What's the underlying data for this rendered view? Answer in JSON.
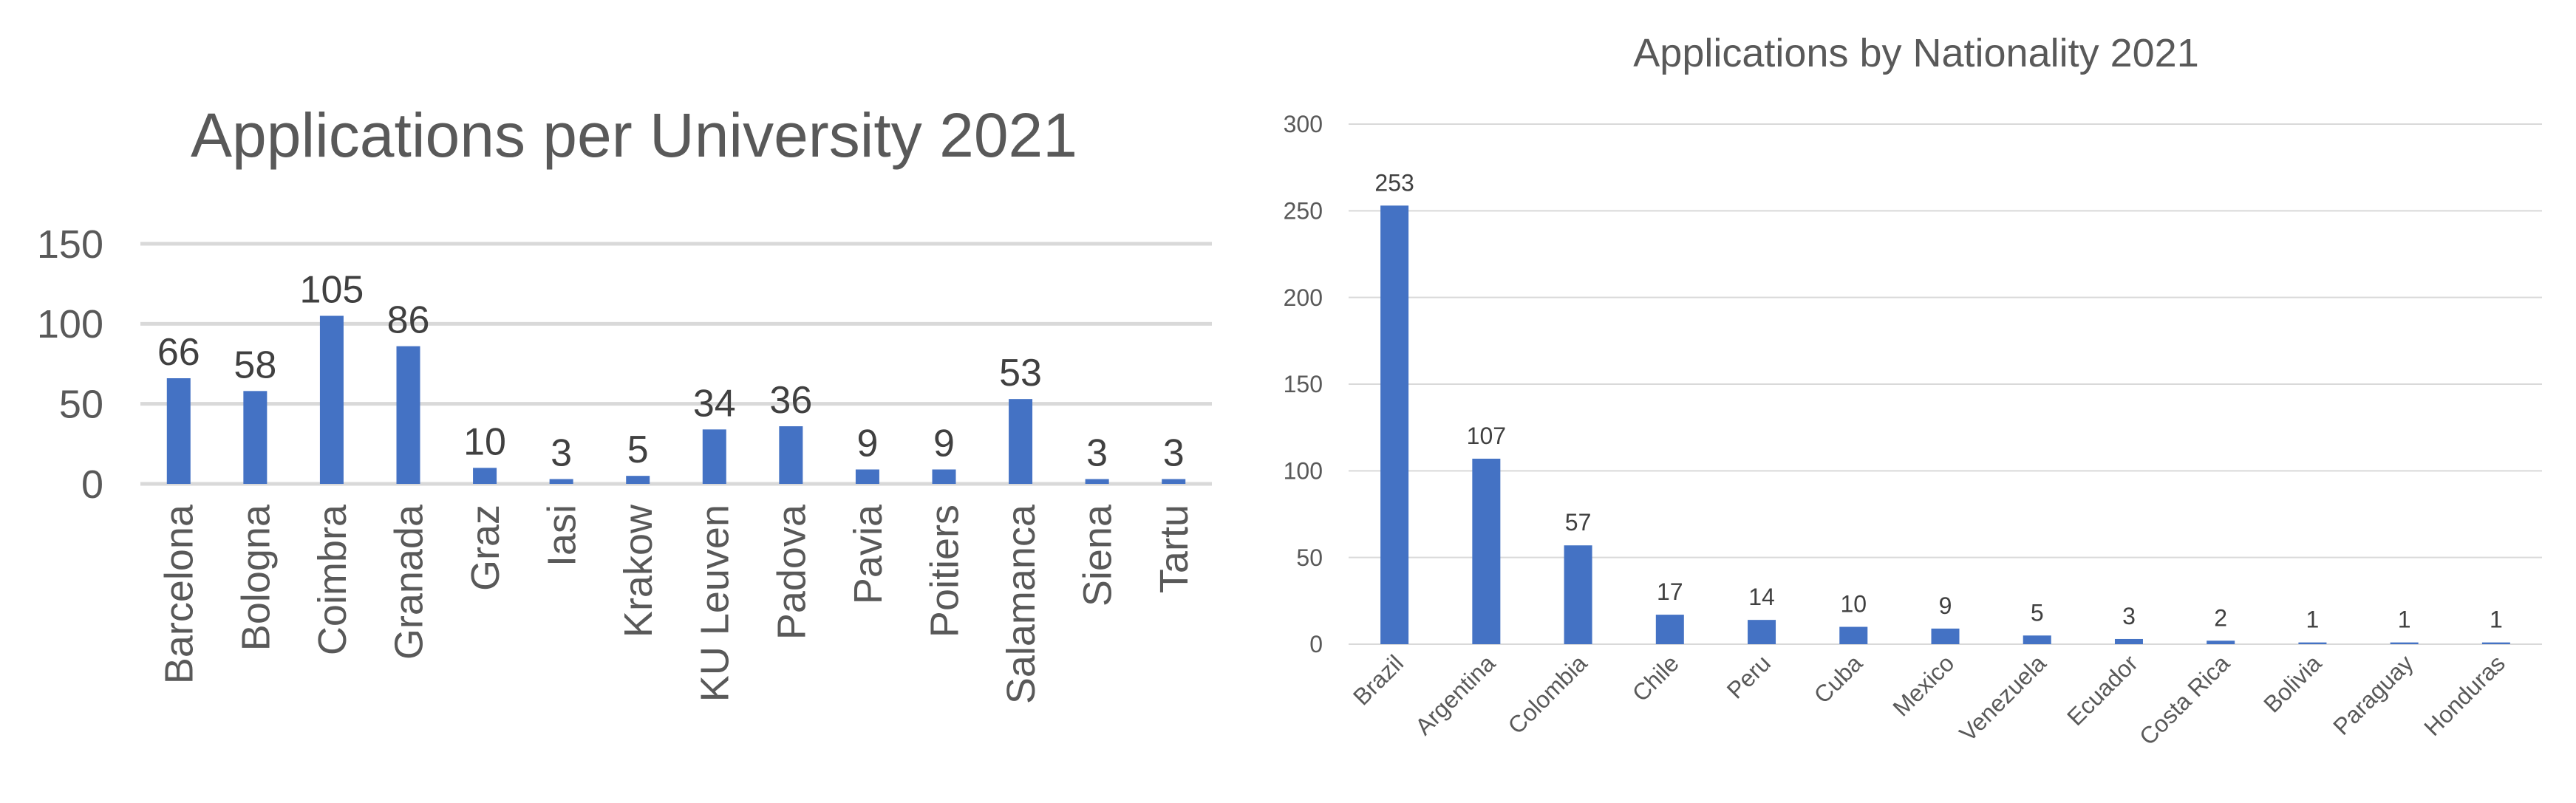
{
  "colors": {
    "bar": "#4472c4",
    "grid": "#d9d9d9",
    "text": "#595959",
    "label": "#404040"
  },
  "chart_data": [
    {
      "type": "bar",
      "title": "Applications per University 2021",
      "xlabel": "",
      "ylabel": "",
      "ylim": [
        0,
        150
      ],
      "yticks": [
        0,
        50,
        100,
        150
      ],
      "grid": true,
      "legend": "none",
      "categories": [
        "Barcelona",
        "Bologna",
        "Coimbra",
        "Granada",
        "Graz",
        "Iasi",
        "Krakow",
        "KU Leuven",
        "Padova",
        "Pavia",
        "Poitiers",
        "Salamanca",
        "Siena",
        "Tartu"
      ],
      "values": [
        66,
        58,
        105,
        86,
        10,
        3,
        5,
        34,
        36,
        9,
        9,
        53,
        3,
        3
      ]
    },
    {
      "type": "bar",
      "title": "Applications by Nationality 2021",
      "xlabel": "",
      "ylabel": "",
      "ylim": [
        0,
        300
      ],
      "yticks": [
        0,
        50,
        100,
        150,
        200,
        250,
        300
      ],
      "grid": true,
      "legend": "none",
      "categories": [
        "Brazil",
        "Argentina",
        "Colombia",
        "Chile",
        "Peru",
        "Cuba",
        "Mexico",
        "Venezuela",
        "Ecuador",
        "Costa Rica",
        "Bolivia",
        "Paraguay",
        "Honduras"
      ],
      "values": [
        253,
        107,
        57,
        17,
        14,
        10,
        9,
        5,
        3,
        2,
        1,
        1,
        1
      ]
    }
  ]
}
